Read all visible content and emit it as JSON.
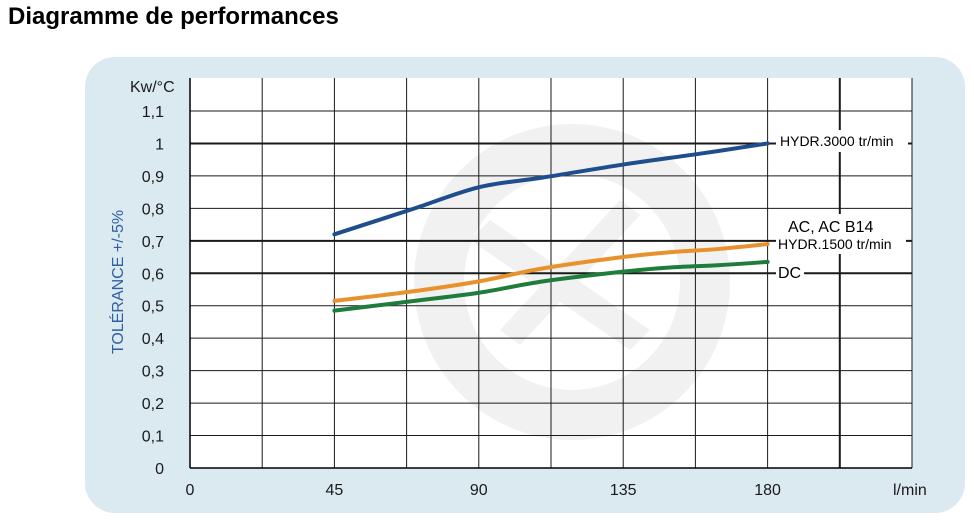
{
  "page": {
    "title": "Diagramme de performances"
  },
  "chart_data": {
    "type": "line",
    "xlabel": "l/min",
    "ylabel": "TOLÉRANCE +/-5%",
    "yunit": "Kw/°C",
    "x_ticks": [
      "0",
      "45",
      "90",
      "135",
      "180"
    ],
    "y_ticks": [
      "0",
      "0,1",
      "0,2",
      "0,3",
      "0,4",
      "0,5",
      "0,6",
      "0,7",
      "0,8",
      "0,9",
      "1",
      "1,1"
    ],
    "xlim": [
      0,
      225
    ],
    "ylim": [
      0,
      1.2
    ],
    "grid": true,
    "series": [
      {
        "name": "HYDR.3000 tr/min",
        "color": "#1f4e8c",
        "x": [
          45,
          70,
          90,
          110,
          135,
          160,
          180
        ],
        "y": [
          0.72,
          0.8,
          0.865,
          0.895,
          0.935,
          0.97,
          1.0
        ]
      },
      {
        "name": "HYDR.1500 tr/min",
        "label_extra": "AC, AC B14",
        "color": "#e8922e",
        "x": [
          45,
          70,
          90,
          110,
          135,
          150,
          165,
          180
        ],
        "y": [
          0.515,
          0.545,
          0.575,
          0.615,
          0.65,
          0.665,
          0.675,
          0.69
        ]
      },
      {
        "name": "DC",
        "color": "#1e7d3a",
        "x": [
          45,
          70,
          90,
          110,
          135,
          150,
          165,
          180
        ],
        "y": [
          0.485,
          0.515,
          0.54,
          0.575,
          0.605,
          0.618,
          0.625,
          0.635
        ]
      }
    ]
  }
}
